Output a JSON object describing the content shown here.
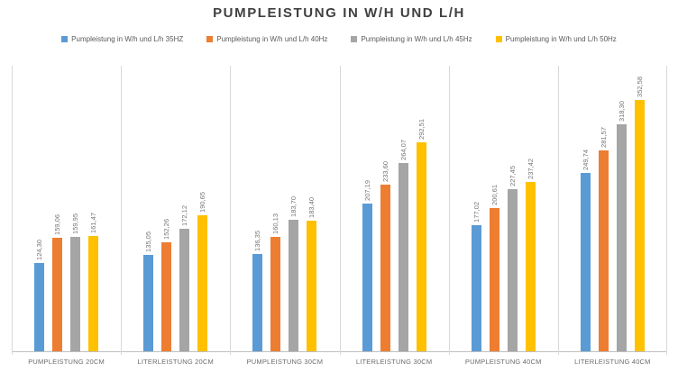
{
  "chart_data": {
    "type": "bar",
    "title": "PUMPLEISTUNG IN W/H UND L/H",
    "categories": [
      "PUMPLEISTUNG 20CM",
      "LITERLEISTUNG 20CM",
      "PUMPLEISTUNG 30CM",
      "LITERLEISTUNG 30CM",
      "PUMPLEISTUNG 40CM",
      "LITERLEISTUNG 40CM"
    ],
    "series": [
      {
        "name": "Pumpleistung in W/h und L/h 35HZ",
        "color": "#5B9BD5",
        "values": [
          124.3,
          135.05,
          136.35,
          207.19,
          177.02,
          249.74
        ],
        "labels": [
          "124,30",
          "135,05",
          "136,35",
          "207,19",
          "177,02",
          "249,74"
        ]
      },
      {
        "name": "Pumpleistung in W/h und L/h 40Hz",
        "color": "#ED7D31",
        "values": [
          159.06,
          152.26,
          160.13,
          233.6,
          200.61,
          281.57
        ],
        "labels": [
          "159,06",
          "152,26",
          "160,13",
          "233,60",
          "200,61",
          "281,57"
        ]
      },
      {
        "name": "Pumpleistung in W/h und L/h 45Hz",
        "color": "#A5A5A5",
        "values": [
          159.95,
          172.12,
          183.7,
          264.07,
          227.45,
          318.3
        ],
        "labels": [
          "159,95",
          "172,12",
          "183,70",
          "264,07",
          "227,45",
          "318,30"
        ]
      },
      {
        "name": "Pumpleistung in W/h und L/h 50Hz",
        "color": "#FFC000",
        "values": [
          161.47,
          190.65,
          183.4,
          292.51,
          237.42,
          352.58
        ],
        "labels": [
          "161,47",
          "190,65",
          "183,40",
          "292,51",
          "237,42",
          "352,58"
        ]
      }
    ],
    "ylim": [
      0,
      400
    ],
    "xlabel": "",
    "ylabel": "",
    "legend_position": "top",
    "grid": "vertical category separators only, no horizontal gridlines, no y-axis labels",
    "data_labels": "values rotated 90deg above each bar, comma decimal separator",
    "axis_line_color": "#BFBFBF",
    "gridline_color": "#D9D9D9",
    "label_text_color": "#767676",
    "category_text_color": "#6B6B6B",
    "title_text_color": "#404040"
  }
}
